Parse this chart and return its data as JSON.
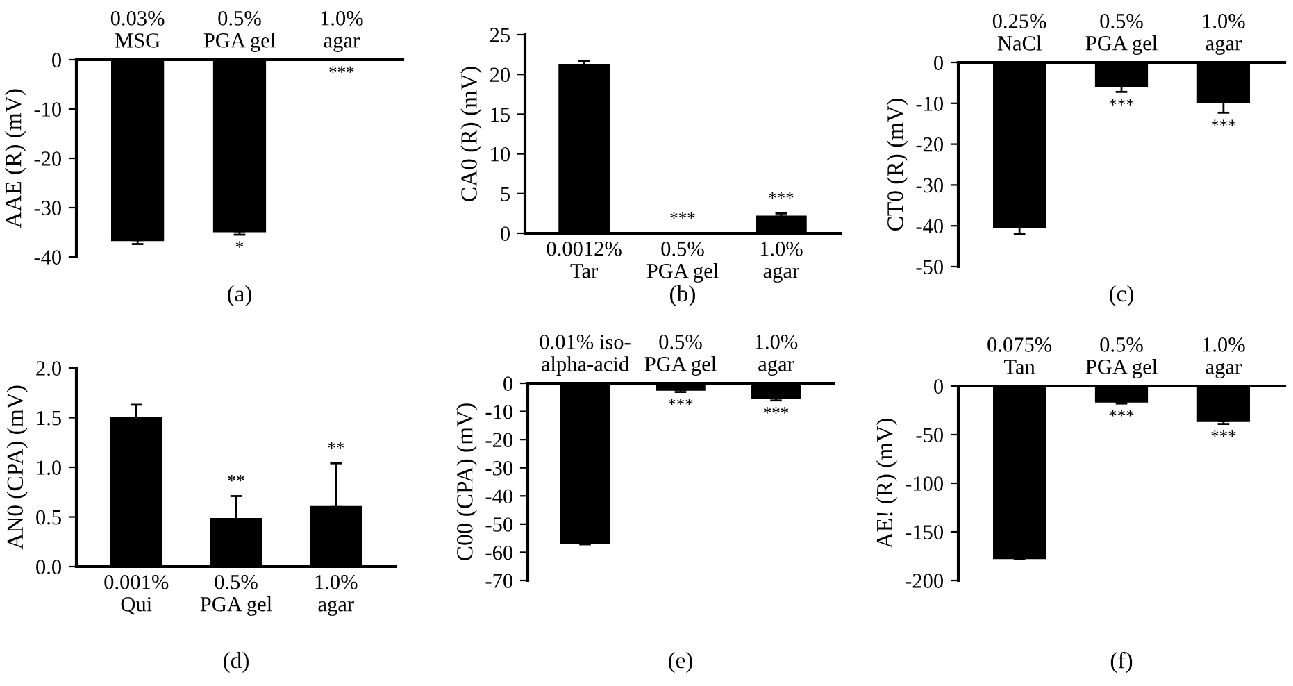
{
  "chart_data": [
    {
      "type": "bar",
      "title": "(a)",
      "ylabel": "AAE (R) (mV)",
      "categories": [
        "0.03%\nMSG",
        "0.5%\nPGA gel",
        "1.0%\nagar"
      ],
      "values": [
        -36.6,
        -34.8,
        0
      ],
      "color": "#000000",
      "errors": [
        [
          -37.4,
          -36.6
        ],
        [
          -35.5,
          -34.8
        ],
        null
      ],
      "ylim": [
        -40,
        0
      ],
      "yticks": [
        0,
        -10,
        -20,
        -30,
        -40
      ],
      "annotations": [
        "*",
        "***"
      ]
    },
    {
      "type": "bar",
      "title": "(b)",
      "ylabel": "CA0 (R) (mV)",
      "categories": [
        "0.0012%\nTar",
        "0.5%\nPGA gel",
        "1.0%\nagar"
      ],
      "values": [
        21.2,
        0,
        2.1
      ],
      "color": "#000000",
      "errors": [
        [
          21.2,
          21.7
        ],
        null,
        [
          2.1,
          2.5
        ]
      ],
      "ylim": [
        0,
        25
      ],
      "yticks": [
        0,
        5,
        10,
        15,
        20,
        25
      ],
      "annotations": [
        "***",
        "***"
      ]
    },
    {
      "type": "bar",
      "title": "(c)",
      "ylabel": "CT0 (R) (mV)",
      "categories": [
        "0.25%\nNaCl",
        "0.5%\nPGA gel",
        "1.0%\nagar"
      ],
      "values": [
        -40.3,
        -5.7,
        -9.8
      ],
      "color": "#000000",
      "errors": [
        [
          -42.0,
          -40.3
        ],
        [
          -7.2,
          -5.7
        ],
        [
          -12.3,
          -9.8
        ]
      ],
      "ylim": [
        -50,
        0
      ],
      "yticks": [
        0,
        -10,
        -20,
        -30,
        -40,
        -50
      ],
      "annotations": [
        "***",
        "***"
      ]
    },
    {
      "type": "bar",
      "title": "(d)",
      "ylabel": "AN0 (CPA) (mV)",
      "categories": [
        "0.001%\nQui",
        "0.5%\nPGA gel",
        "1.0%\nagar"
      ],
      "values": [
        1.5,
        0.48,
        0.6
      ],
      "color": "#000000",
      "errors": [
        [
          1.5,
          1.63
        ],
        [
          0.48,
          0.71
        ],
        [
          0.6,
          1.04
        ]
      ],
      "ylim": [
        0,
        2
      ],
      "yticks": [
        {
          "value": 0,
          "label": "0.0"
        },
        0.5,
        {
          "value": 1,
          "label": "1.0"
        },
        1.5,
        {
          "value": 2,
          "label": "2.0"
        }
      ],
      "annotations": [
        "**",
        "**"
      ]
    },
    {
      "type": "bar",
      "title": "(e)",
      "ylabel": "C00 (CPA) (mV)",
      "categories": [
        "0.01% iso-\nalpha-acid",
        "0.5%\nPGA gel",
        "1.0%\nagar"
      ],
      "values": [
        -56.8,
        -2.3,
        -5.3
      ],
      "color": "#000000",
      "errors": [
        [
          -57.2,
          -56.8
        ],
        [
          -3.1,
          -2.3
        ],
        [
          -6.1,
          -5.3
        ]
      ],
      "ylim": [
        -70,
        0
      ],
      "yticks": [
        0,
        -10,
        -20,
        -30,
        -40,
        -50,
        -60,
        -70
      ],
      "annotations": [
        "***",
        "***"
      ]
    },
    {
      "type": "bar",
      "title": "(f)",
      "ylabel": "AE! (R) (mV)",
      "categories": [
        "0.075%\nTan",
        "0.5%\nPGA gel",
        "1.0%\nagar"
      ],
      "values": [
        -177,
        -16,
        -36
      ],
      "color": "#000000",
      "errors": [
        [
          -178,
          -177
        ],
        [
          -18,
          -16
        ],
        [
          -39,
          -36
        ]
      ],
      "ylim": [
        -200,
        0
      ],
      "yticks": [
        0,
        -50,
        -100,
        -150,
        -200
      ],
      "annotations": [
        "***",
        "***"
      ]
    }
  ]
}
